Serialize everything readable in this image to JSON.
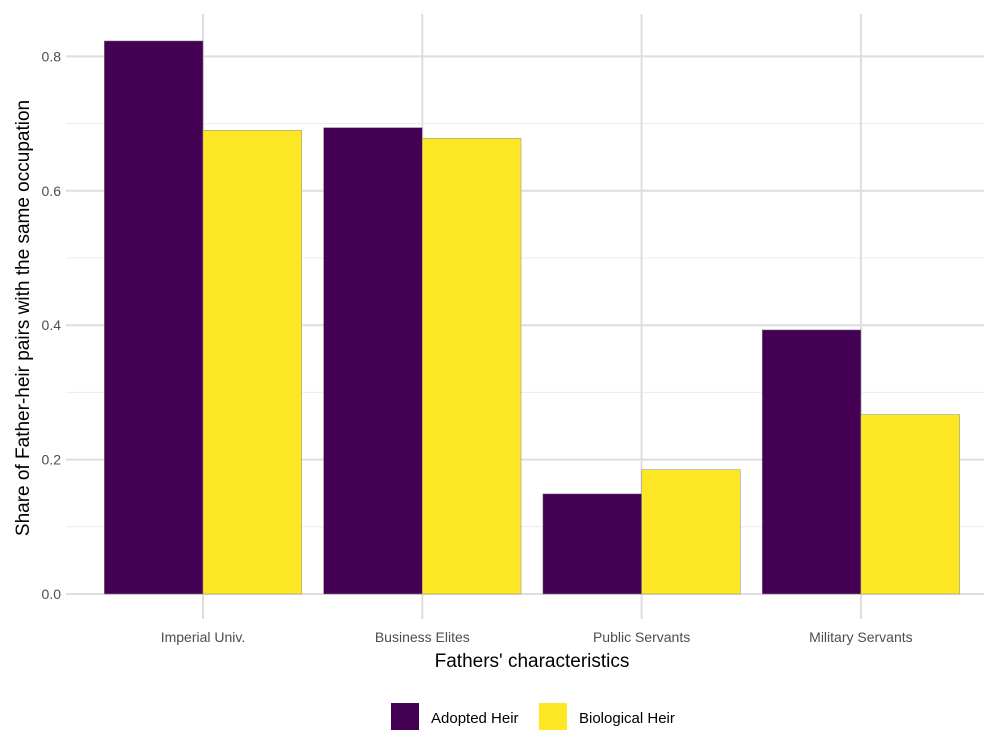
{
  "chart_data": {
    "type": "bar",
    "xlabel": "Fathers' characteristics",
    "ylabel": "Share of Father-heir pairs with the same occupation",
    "categories": [
      "Imperial Univ.",
      "Business Elites",
      "Public Servants",
      "Military Servants"
    ],
    "series": [
      {
        "name": "Adopted Heir",
        "values": [
          0.823,
          0.694,
          0.149,
          0.393
        ],
        "color": "#440154"
      },
      {
        "name": "Biological Heir",
        "values": [
          0.69,
          0.678,
          0.185,
          0.267
        ],
        "color": "#FDE725"
      }
    ],
    "ylim": [
      0,
      0.86
    ],
    "yticks": [
      0.0,
      0.2,
      0.4,
      0.6,
      0.8
    ],
    "ytick_labels": [
      "0.0",
      "0.2",
      "0.4",
      "0.6",
      "0.8"
    ],
    "grid": true,
    "legend_position": "bottom"
  }
}
